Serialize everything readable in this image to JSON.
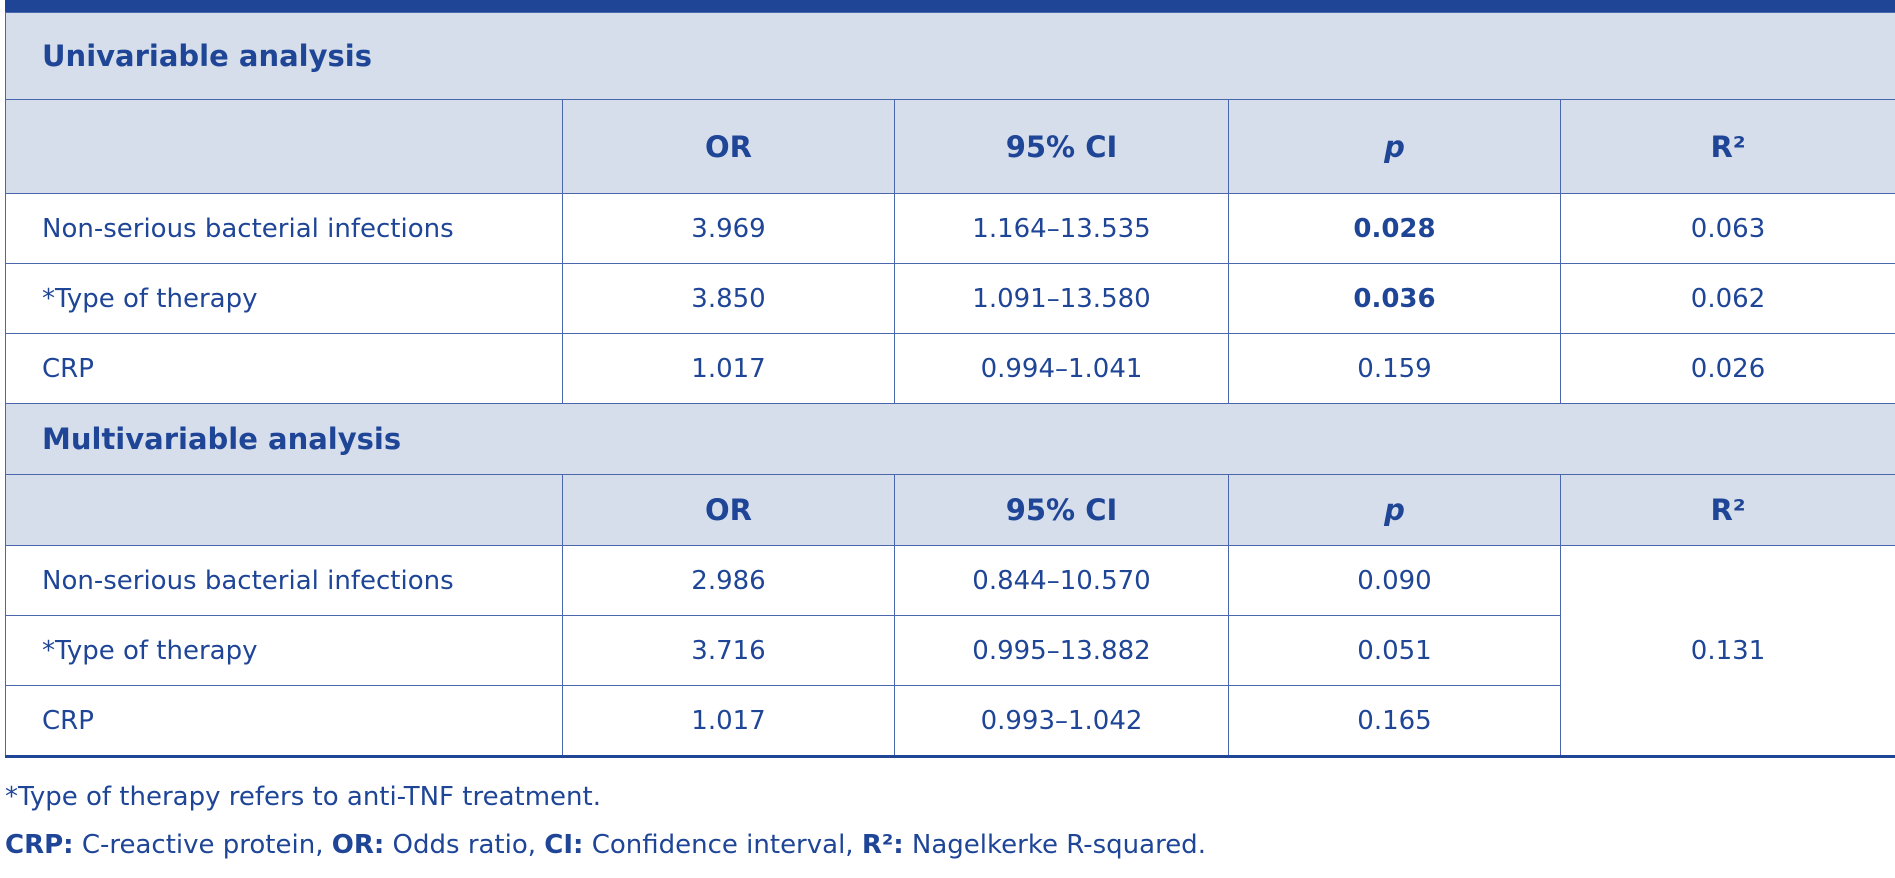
{
  "table": {
    "columns": [
      "OR",
      "95% CI",
      "p",
      "R²"
    ],
    "sections": [
      {
        "title": "Univariable analysis",
        "rows": [
          {
            "label": "Non-serious bacterial infections",
            "or": "3.969",
            "ci": "1.164–13.535",
            "p": "0.028",
            "r2": "0.063",
            "p_bold": true
          },
          {
            "label": "*Type of therapy",
            "or": "3.850",
            "ci": "1.091–13.580",
            "p": "0.036",
            "r2": "0.062",
            "p_bold": true
          },
          {
            "label": "CRP",
            "or": "1.017",
            "ci": "0.994–1.041",
            "p": "0.159",
            "r2": "0.026",
            "p_bold": false
          }
        ]
      },
      {
        "title": "Multivariable analysis",
        "r2_merged": "0.131",
        "rows": [
          {
            "label": "Non-serious bacterial infections",
            "or": "2.986",
            "ci": "0.844–10.570",
            "p": "0.090",
            "p_bold": false
          },
          {
            "label": "*Type of therapy",
            "or": "3.716",
            "ci": "0.995–13.882",
            "p": "0.051",
            "p_bold": false
          },
          {
            "label": "CRP",
            "or": "1.017",
            "ci": "0.993–1.042",
            "p": "0.165",
            "p_bold": false
          }
        ]
      }
    ]
  },
  "footnotes": {
    "note": "*Type of therapy refers to anti-TNF treatment.",
    "abbreviations": [
      {
        "term": "CRP:",
        "text": " C-reactive protein, "
      },
      {
        "term": "OR:",
        "text": " Odds ratio, "
      },
      {
        "term": "CI:",
        "text": " Confidence interval, "
      },
      {
        "term": "R²:",
        "text": " Nagelkerke R-squared."
      }
    ]
  }
}
